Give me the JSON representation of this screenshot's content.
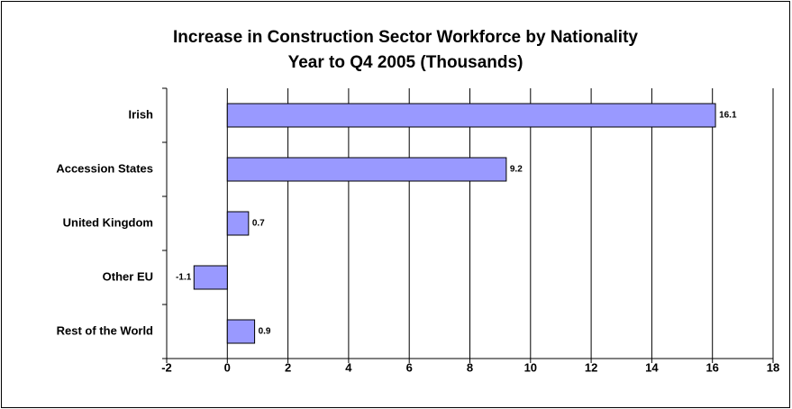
{
  "chart_data": {
    "type": "hbar",
    "title": "Increase in Construction Sector Workforce by Nationality",
    "subtitle": "Year to Q4 2005 (Thousands)",
    "categories": [
      "Irish",
      "Accession States",
      "United Kingdom",
      "Other EU",
      "Rest of the World"
    ],
    "values": [
      16.1,
      9.2,
      0.7,
      -1.1,
      0.9
    ],
    "color": "#9999ff",
    "xlim": [
      -2,
      18
    ],
    "xticks": [
      -2,
      0,
      2,
      4,
      6,
      8,
      10,
      12,
      14,
      16,
      18
    ],
    "grid": true
  }
}
